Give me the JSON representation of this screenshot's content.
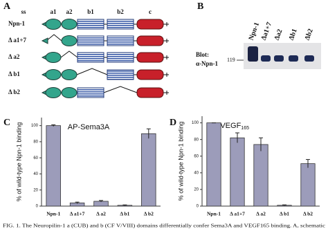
{
  "panels": [
    "A",
    "B",
    "C",
    "D"
  ],
  "diagram": {
    "domains": [
      "ss",
      "a1",
      "a2",
      "b1",
      "b2",
      "c"
    ],
    "rows": [
      "Npn-1",
      "Δ a1+7",
      "Δ a2",
      "Δ b1",
      "Δ b2"
    ]
  },
  "blot": {
    "lanes": [
      "Npn-1",
      "Δa1+7",
      "Δa2",
      "Δb1",
      "Δb2"
    ],
    "label": [
      "Blot:",
      "α-Npn-1"
    ],
    "marker": 119
  },
  "chart_data": [
    {
      "type": "bar",
      "title": "AP-Sema3A",
      "ylabel": "% of wild-type Npn-1 binding",
      "categories": [
        "Npn-1",
        "Δ a1+7",
        "Δ a2",
        "Δ b1",
        "Δ b2"
      ],
      "values": [
        100,
        4,
        6,
        1,
        90
      ],
      "errors": [
        1,
        1,
        1,
        0.5,
        6
      ],
      "color": "#9c9cba",
      "ylim": [
        0,
        110
      ],
      "yticks": [
        0,
        20,
        40,
        60,
        80,
        100
      ]
    },
    {
      "type": "bar",
      "title": "AP-VEGF",
      "title_subscript": "165",
      "ylabel": "% of wild-type Npn-1 binding",
      "categories": [
        "Npn-1",
        "Δ a1+7",
        "Δ a2",
        "Δ b1",
        "Δ b2"
      ],
      "values": [
        100,
        82,
        74,
        1,
        51
      ],
      "errors": [
        0,
        6,
        8,
        0.5,
        5
      ],
      "color": "#9c9cba",
      "ylim": [
        0,
        108
      ],
      "yticks": [
        0,
        20,
        40,
        60,
        80,
        100
      ]
    }
  ],
  "caption": "FIG. 1. The Neuropilin-1 a (CUB) and b (CF V/VIII) domains differentially confer Sema3A and VEGF165 binding. A, schematic"
}
